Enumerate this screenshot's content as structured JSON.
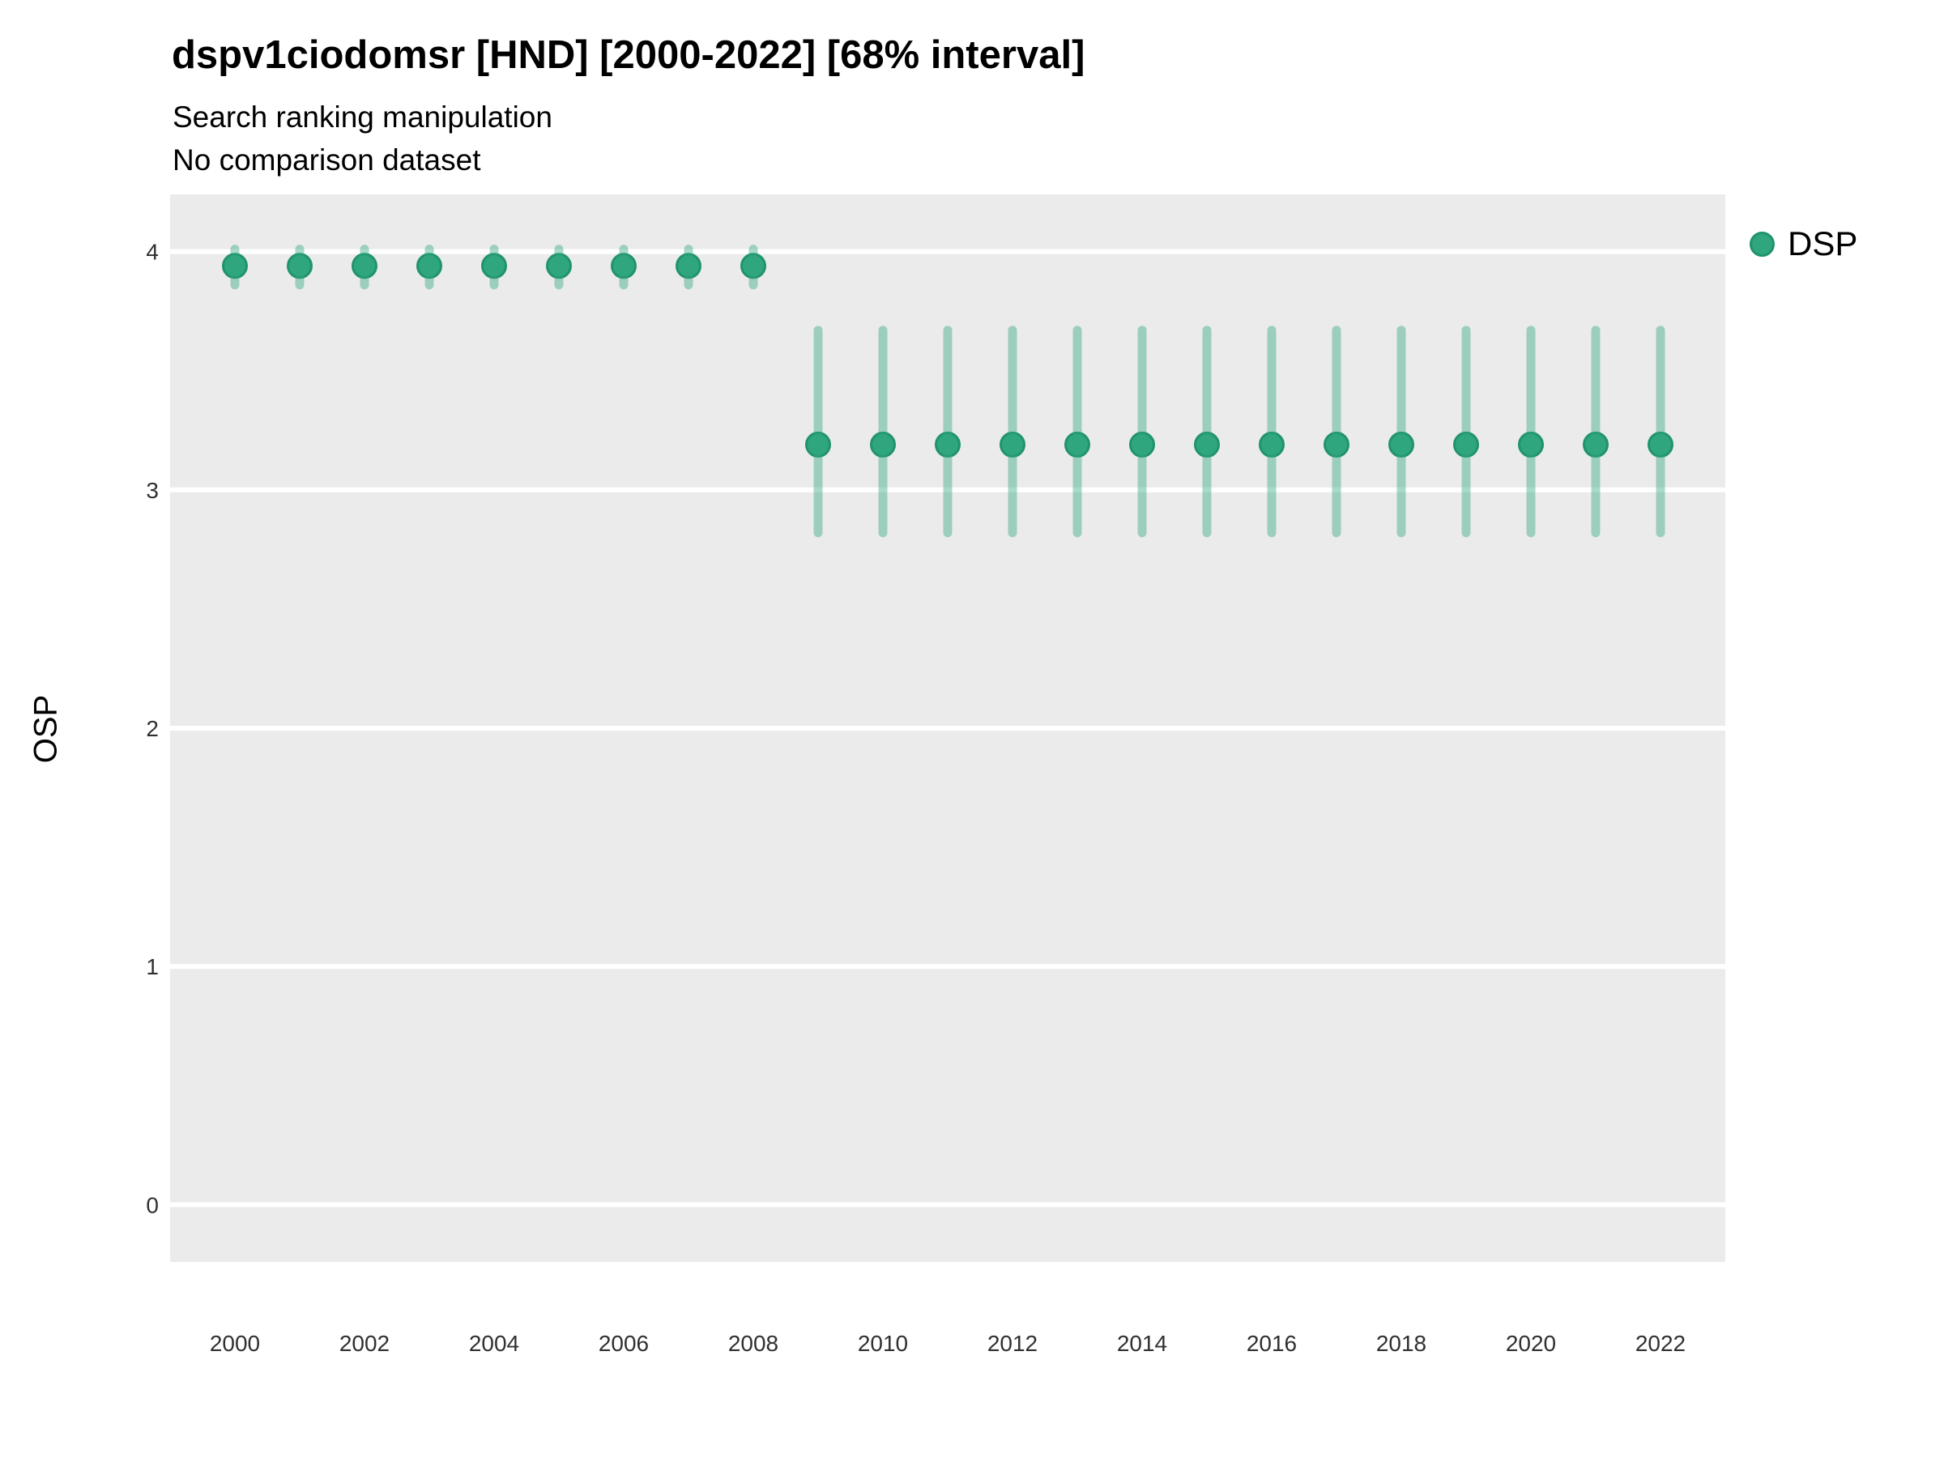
{
  "header": {
    "title": "dspv1ciodomsr [HND] [2000-2022] [68% interval]",
    "subtitle": "Search ranking manipulation",
    "note": "No comparison dataset"
  },
  "chart_data": {
    "type": "pointrange",
    "title": "dspv1ciodomsr [HND] [2000-2022] [68% interval]",
    "subtitle": "Search ranking manipulation",
    "note": "No comparison dataset",
    "xlabel": "",
    "ylabel": "OSP",
    "interval_label": "68% interval",
    "legend_position": "right",
    "grid": "horizontal-major-only",
    "xlim": [
      1999,
      2023
    ],
    "ylim": [
      -0.24,
      4.24
    ],
    "xticks": [
      2000,
      2002,
      2004,
      2006,
      2008,
      2010,
      2012,
      2014,
      2016,
      2018,
      2020,
      2022
    ],
    "yticks": [
      0,
      1,
      2,
      3,
      4
    ],
    "x": [
      2000,
      2001,
      2002,
      2003,
      2004,
      2005,
      2006,
      2007,
      2008,
      2009,
      2010,
      2011,
      2012,
      2013,
      2014,
      2015,
      2016,
      2017,
      2018,
      2019,
      2020,
      2021,
      2022
    ],
    "series": [
      {
        "name": "DSP",
        "values": [
          3.94,
          3.94,
          3.94,
          3.94,
          3.94,
          3.94,
          3.94,
          3.94,
          3.94,
          3.19,
          3.19,
          3.19,
          3.19,
          3.19,
          3.19,
          3.19,
          3.19,
          3.19,
          3.19,
          3.19,
          3.19,
          3.19,
          3.19
        ],
        "lower": [
          3.86,
          3.86,
          3.86,
          3.86,
          3.86,
          3.86,
          3.86,
          3.86,
          3.86,
          2.82,
          2.82,
          2.82,
          2.82,
          2.82,
          2.82,
          2.82,
          2.82,
          2.82,
          2.82,
          2.82,
          2.82,
          2.82,
          2.82
        ],
        "upper": [
          4.01,
          4.01,
          4.01,
          4.01,
          4.01,
          4.01,
          4.01,
          4.01,
          4.01,
          3.67,
          3.67,
          3.67,
          3.67,
          3.67,
          3.67,
          3.67,
          3.67,
          3.67,
          3.67,
          3.67,
          3.67,
          3.67,
          3.67
        ]
      }
    ],
    "colors": {
      "point_fill": "#2FA67E",
      "point_stroke": "#21936C",
      "range": "#2FA67E",
      "range_opacity": 0.42,
      "panel_background": "#EBEBEB",
      "gridline": "#FFFFFF",
      "tick_text": "#303030"
    }
  }
}
